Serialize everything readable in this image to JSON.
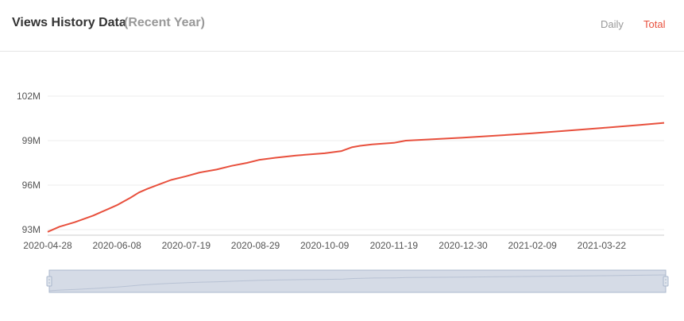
{
  "header": {
    "title": "Views History Data",
    "subtitle": "(Recent Year)",
    "tabs": [
      {
        "label": "Daily",
        "active": false
      },
      {
        "label": "Total",
        "active": true
      }
    ]
  },
  "colors": {
    "line": "#e8503d",
    "active_tab": "#e8503d",
    "inactive_tab": "#999999",
    "grid": "#eeeeee",
    "slider_fill": "#d5dbe6",
    "slider_border": "#aab7cc"
  },
  "chart_data": {
    "type": "line",
    "title": "Views History Data",
    "subtitle": "(Recent Year)",
    "xlabel": "",
    "ylabel": "",
    "x_axis_type": "date",
    "x_range": [
      "2020-04-28",
      "2021-04-28"
    ],
    "ylim": [
      92.8,
      103.5
    ],
    "y_unit": "M",
    "y_ticks": [
      {
        "value": 93,
        "label": "93M"
      },
      {
        "value": 96,
        "label": "96M"
      },
      {
        "value": 99,
        "label": "99M"
      },
      {
        "value": 102,
        "label": "102M"
      }
    ],
    "x_ticks": [
      "2020-04-28",
      "2020-06-08",
      "2020-07-19",
      "2020-08-29",
      "2020-10-09",
      "2020-11-19",
      "2020-12-30",
      "2021-02-09",
      "2021-03-22"
    ],
    "grid": "horizontal",
    "legend": "none",
    "data_zoom_slider": true,
    "series": [
      {
        "x": [
          "2020-04-28",
          "2020-05-05",
          "2020-05-14",
          "2020-05-25",
          "2020-06-03",
          "2020-06-08",
          "2020-06-16",
          "2020-06-21",
          "2020-06-26",
          "2020-07-03",
          "2020-07-10",
          "2020-07-19",
          "2020-07-27",
          "2020-08-06",
          "2020-08-15",
          "2020-08-24",
          "2020-08-31",
          "2020-09-10",
          "2020-09-22",
          "2020-10-09",
          "2020-10-19",
          "2020-10-25",
          "2020-10-30",
          "2020-11-06",
          "2020-11-19",
          "2020-11-26",
          "2020-12-04",
          "2020-12-30",
          "2021-01-20",
          "2021-02-09",
          "2021-02-27",
          "2021-03-22",
          "2021-04-13",
          "2021-04-28"
        ],
        "y": [
          92.85,
          93.2,
          93.5,
          93.95,
          94.4,
          94.65,
          95.15,
          95.5,
          95.75,
          96.05,
          96.35,
          96.6,
          96.85,
          97.05,
          97.3,
          97.5,
          97.7,
          97.85,
          98.0,
          98.15,
          98.3,
          98.55,
          98.65,
          98.75,
          98.85,
          99.0,
          99.05,
          99.2,
          99.35,
          99.5,
          99.65,
          99.85,
          100.05,
          100.2
        ]
      }
    ]
  }
}
